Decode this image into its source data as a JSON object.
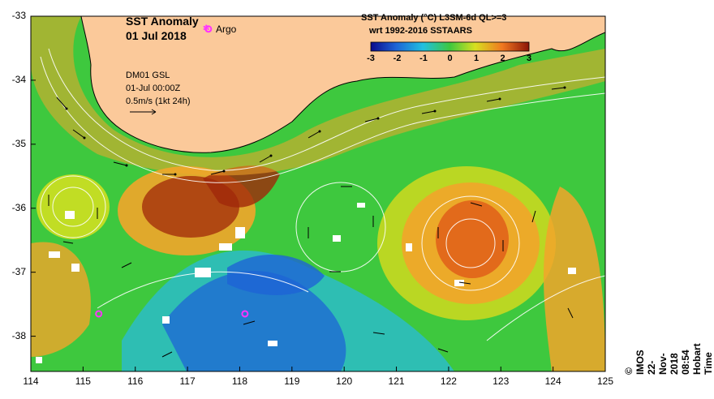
{
  "map": {
    "title_line1": "SST Anomaly",
    "title_line2": "01 Jul 2018",
    "argo_label": "Argo",
    "model_line1": "DM01 GSL",
    "model_line2": "01-Jul 00:00Z",
    "model_line3": "0.5m/s (1kt 24h)",
    "product_line1": "SST Anomaly (°C) L3SM-6d QL>=3",
    "product_line2": "wrt 1992-2016 SSTAARS",
    "credit": "© IMOS 22-Nov-2018 08:54 Hobart Time",
    "lat_ticks": [
      "-33",
      "-34",
      "-35",
      "-36",
      "-37",
      "-38"
    ],
    "lon_ticks": [
      "114",
      "115",
      "116",
      "117",
      "118",
      "119",
      "120",
      "121",
      "122",
      "123",
      "124",
      "125"
    ],
    "colorbar_ticks": [
      "-3",
      "-2",
      "-1",
      "0",
      "1",
      "2",
      "3"
    ],
    "colors": {
      "land": "#fbc99a",
      "argo": "#ff33ff",
      "cold": "#1e64d6",
      "neutral": "#3ec83e",
      "warm": "#f2a52a",
      "hot": "#a0280a"
    },
    "argo_floats": [
      {
        "lon": 117.4,
        "lat": -33.2
      },
      {
        "lon": 115.3,
        "lat": -37.65
      },
      {
        "lon": 118.1,
        "lat": -37.65
      }
    ]
  }
}
